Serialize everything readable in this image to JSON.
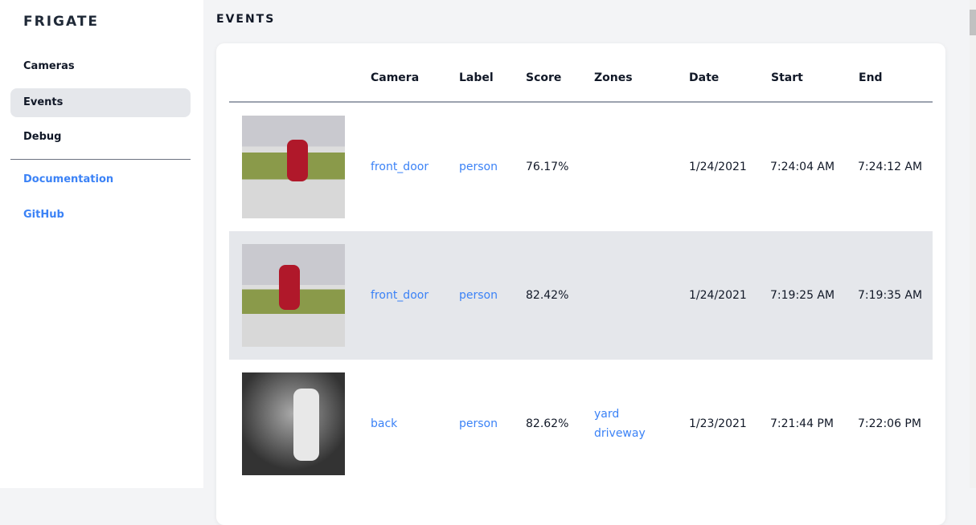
{
  "sidebar": {
    "brand": "FRIGATE",
    "items": [
      {
        "label": "Cameras"
      },
      {
        "label": "Events"
      },
      {
        "label": "Debug"
      }
    ],
    "links": [
      {
        "label": "Documentation"
      },
      {
        "label": "GitHub"
      }
    ]
  },
  "page_title": "EVENTS",
  "table": {
    "headers": [
      "Camera",
      "Label",
      "Score",
      "Zones",
      "Date",
      "Start",
      "End"
    ],
    "rows": [
      {
        "camera": "front_door",
        "label": "person",
        "score": "76.17%",
        "zones": [
          "",
          ""
        ],
        "date": "1/24/2021",
        "start": "7:24:04 AM",
        "end": "7:24:12 AM"
      },
      {
        "camera": "front_door",
        "label": "person",
        "score": "82.42%",
        "zones": [
          "",
          ""
        ],
        "date": "1/24/2021",
        "start": "7:19:25 AM",
        "end": "7:19:35 AM"
      },
      {
        "camera": "back",
        "label": "person",
        "score": "82.62%",
        "zones": [
          "yard",
          "driveway"
        ],
        "date": "1/23/2021",
        "start": "7:21:44 PM",
        "end": "7:22:06 PM"
      }
    ]
  },
  "colors": {
    "accent": "#3b82f6",
    "active_bg": "#e5e7eb"
  }
}
